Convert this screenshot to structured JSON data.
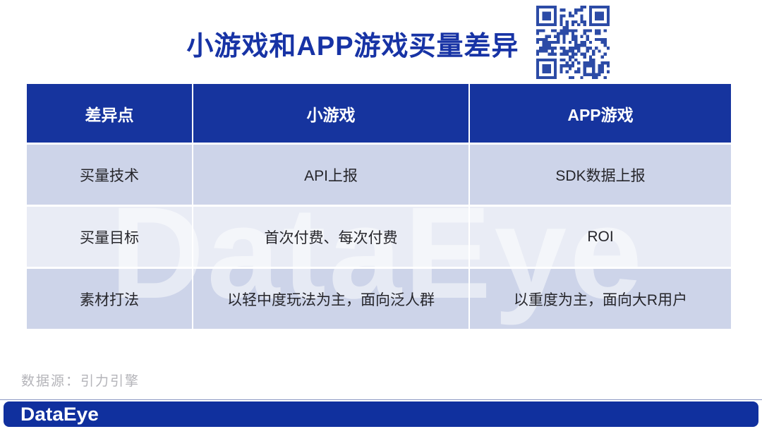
{
  "page": {
    "title": "小游戏和APP游戏买量差异",
    "source_note": "数据源：引力引擎",
    "brand_logo": "DataEye",
    "watermark_text": "DataEye"
  },
  "icons": {
    "qr_code": "qr-code-icon"
  },
  "colors": {
    "title_text": "#1733a5",
    "header_bg": "#16349e",
    "header_text": "#ffffff",
    "row_odd_bg": "#cdd4e9",
    "row_even_bg": "#e9ecf5",
    "body_text": "#26262b",
    "qr_blue": "#2c4ba6",
    "footer_bar_bg": "#10309e",
    "source_text": "#b4b4b9"
  },
  "table": {
    "headers": [
      "差异点",
      "小游戏",
      "APP游戏"
    ],
    "rows": [
      [
        "买量技术",
        "API上报",
        "SDK数据上报"
      ],
      [
        "买量目标",
        "首次付费、每次付费",
        "ROI"
      ],
      [
        "素材打法",
        "以轻中度玩法为主，面向泛人群",
        "以重度为主，面向大R用户"
      ]
    ]
  }
}
